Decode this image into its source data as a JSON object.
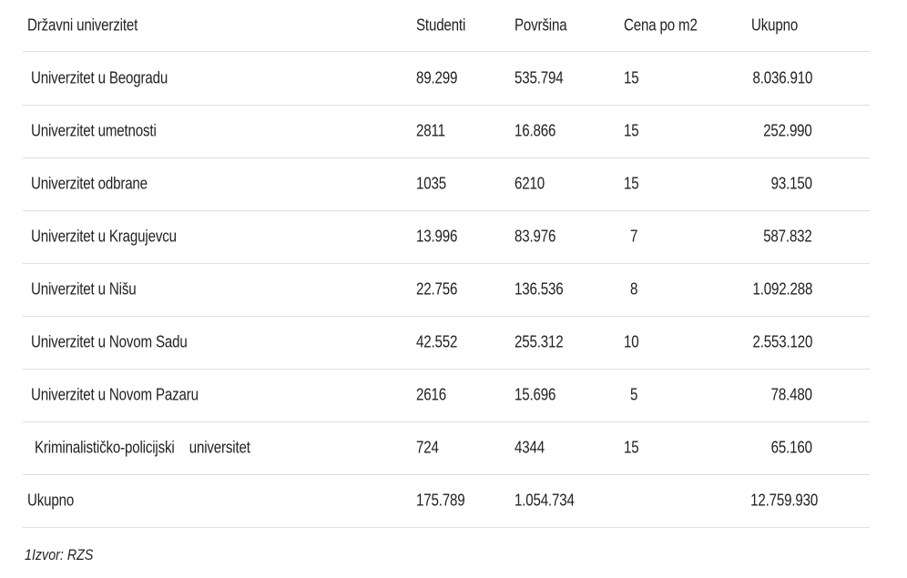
{
  "table": {
    "headers": [
      "Državni univerzitet",
      "Studenti",
      "Površina",
      "Cena po m2",
      "Ukupno"
    ],
    "rows": [
      {
        "name": "Univerzitet u Beogradu",
        "studenti": "89.299",
        "povrsina": "535.794",
        "cena": "15",
        "ukupno": "8.036.910"
      },
      {
        "name": "Univerzitet umetnosti",
        "studenti": "2811",
        "povrsina": "16.866",
        "cena": "15",
        "ukupno": "252.990"
      },
      {
        "name": "Univerzitet odbrane",
        "studenti": "1035",
        "povrsina": "6210",
        "cena": "15",
        "ukupno": "93.150"
      },
      {
        "name": "Univerzitet u Kragujevcu",
        "studenti": "13.996",
        "povrsina": "83.976",
        "cena": "7",
        "ukupno": "587.832"
      },
      {
        "name": "Univerzitet u Nišu",
        "studenti": "22.756",
        "povrsina": "136.536",
        "cena": "8",
        "ukupno": "1.092.288"
      },
      {
        "name": "Univerzitet u Novom Sadu",
        "studenti": "42.552",
        "povrsina": "255.312",
        "cena": "10",
        "ukupno": "2.553.120"
      },
      {
        "name": "Univerzitet u Novom Pazaru",
        "studenti": "2616",
        "povrsina": "15.696",
        "cena": "5",
        "ukupno": "78.480"
      },
      {
        "name": "Kriminalističko-policijski    universitet",
        "studenti": "724",
        "povrsina": "4344",
        "cena": "15",
        "ukupno": "65.160"
      }
    ],
    "total": {
      "name": "Ukupno",
      "studenti": "175.789",
      "povrsina": "1.054.734",
      "cena": "",
      "ukupno": "12.759.930"
    }
  },
  "caption": "1Izvor: RZS"
}
